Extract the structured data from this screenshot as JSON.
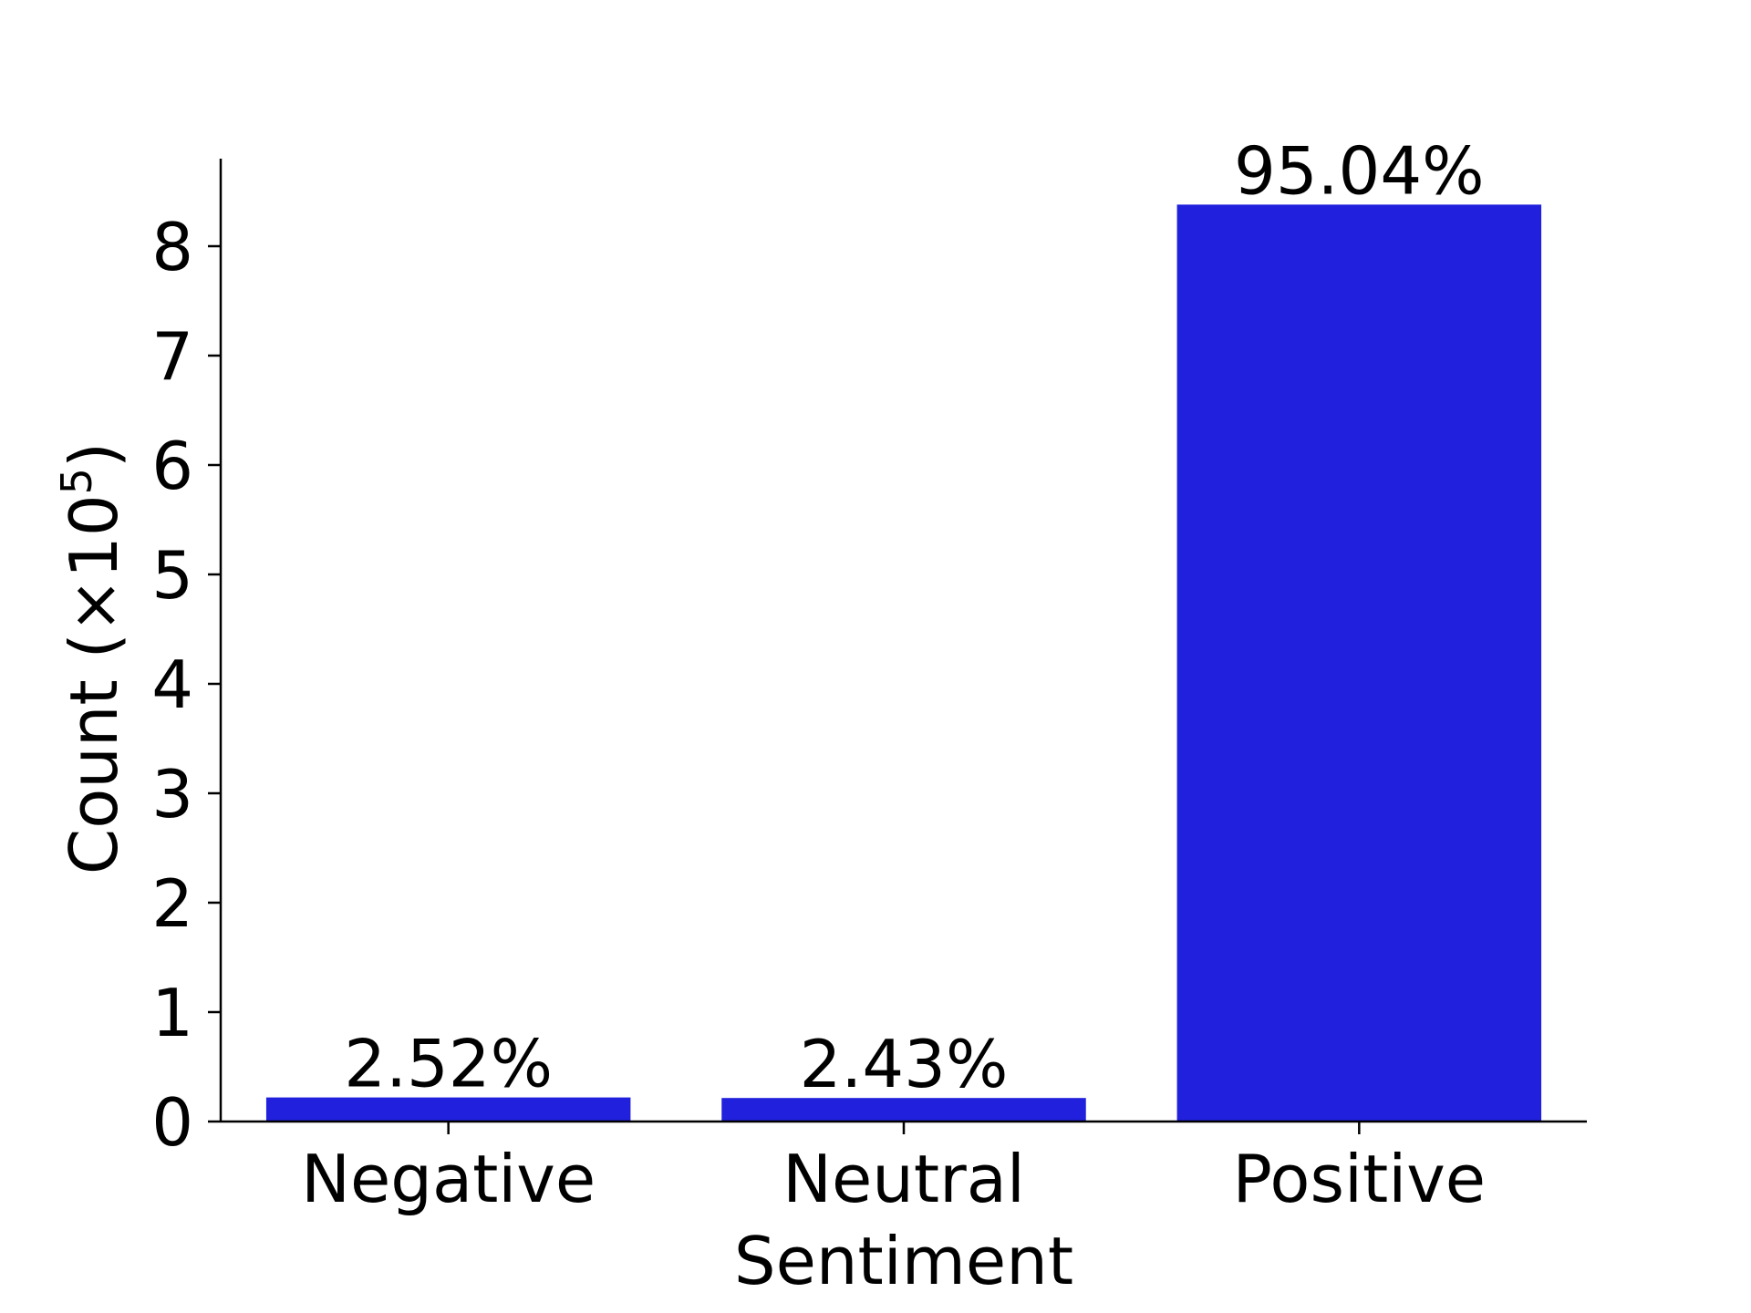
{
  "chart_data": {
    "type": "bar",
    "categories": [
      "Negative",
      "Neutral",
      "Positive"
    ],
    "values": [
      0.22,
      0.215,
      8.38
    ],
    "data_labels": [
      "2.52%",
      "2.43%",
      "95.04%"
    ],
    "title": "",
    "xlabel": "Sentiment",
    "ylabel_main": "Count (×10",
    "ylabel_sup": "5",
    "ylabel_close": ")",
    "ylim": [
      0,
      8.8
    ],
    "yticks": [
      0,
      1,
      2,
      3,
      4,
      5,
      6,
      7,
      8
    ],
    "ytick_labels": [
      "0",
      "1",
      "2",
      "3",
      "4",
      "5",
      "6",
      "7",
      "8"
    ],
    "bar_color": "#2020dd",
    "grid": false,
    "legend": "none"
  }
}
